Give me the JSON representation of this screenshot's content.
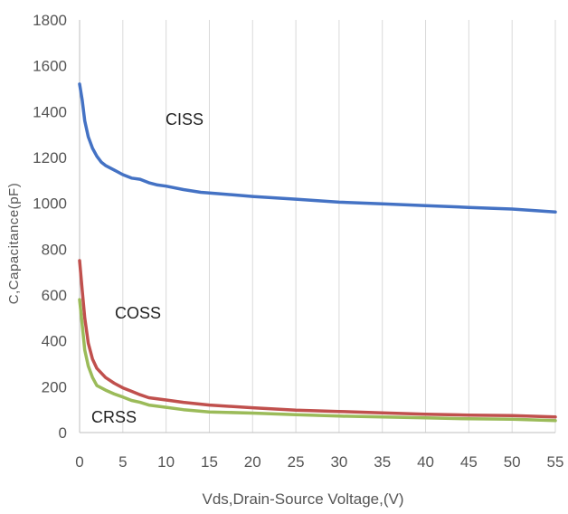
{
  "chart_data": {
    "type": "line",
    "xlabel": "Vds,Drain-Source Voltage,(V)",
    "ylabel": "C,Capacitance(pF)",
    "xlim": [
      0,
      55
    ],
    "ylim": [
      0,
      1800
    ],
    "xticks": [
      0,
      5,
      10,
      15,
      20,
      25,
      30,
      35,
      40,
      45,
      50,
      55
    ],
    "yticks": [
      0,
      200,
      400,
      600,
      800,
      1000,
      1200,
      1400,
      1600,
      1800
    ],
    "grid": "vertical",
    "legend": "none",
    "series": [
      {
        "name": "CISS",
        "color": "#4472c4",
        "x": [
          0,
          0.3,
          0.6,
          1,
          1.5,
          2,
          2.5,
          3,
          4,
          5,
          6,
          7,
          8,
          9,
          10,
          12,
          14,
          16,
          18,
          20,
          25,
          30,
          35,
          40,
          45,
          50,
          55
        ],
        "y": [
          1520,
          1450,
          1360,
          1290,
          1240,
          1205,
          1180,
          1165,
          1145,
          1125,
          1110,
          1105,
          1090,
          1080,
          1075,
          1060,
          1048,
          1042,
          1036,
          1030,
          1018,
          1005,
          998,
          990,
          982,
          975,
          962
        ]
      },
      {
        "name": "COSS",
        "color": "#c0504d",
        "x": [
          0,
          0.3,
          0.6,
          1,
          1.5,
          2,
          3,
          4,
          5,
          6,
          7,
          8,
          10,
          12,
          15,
          20,
          25,
          30,
          35,
          40,
          45,
          50,
          55
        ],
        "y": [
          750,
          620,
          500,
          390,
          320,
          280,
          240,
          215,
          195,
          180,
          165,
          152,
          142,
          132,
          120,
          108,
          98,
          92,
          86,
          80,
          76,
          74,
          68
        ]
      },
      {
        "name": "CRSS",
        "color": "#9bbb59",
        "x": [
          0,
          0.3,
          0.6,
          1,
          1.5,
          2,
          3,
          4,
          5,
          6,
          7,
          8,
          10,
          12,
          15,
          20,
          25,
          30,
          35,
          40,
          45,
          50,
          55
        ],
        "y": [
          580,
          470,
          360,
          290,
          240,
          205,
          185,
          168,
          155,
          140,
          132,
          120,
          110,
          100,
          90,
          85,
          78,
          72,
          68,
          64,
          60,
          58,
          52
        ]
      }
    ]
  }
}
